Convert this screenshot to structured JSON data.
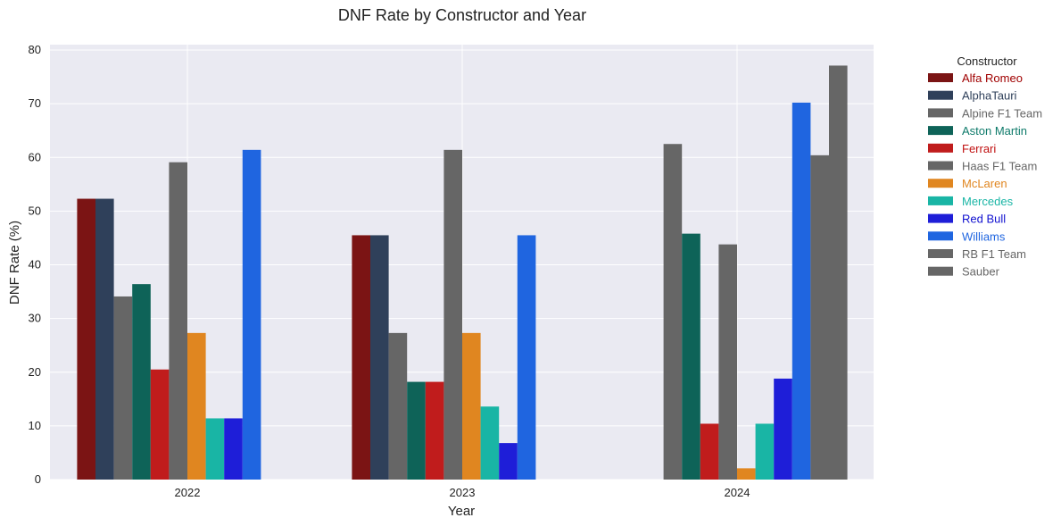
{
  "chart_data": {
    "type": "bar",
    "title": "DNF Rate by Constructor and Year",
    "xlabel": "Year",
    "ylabel": "DNF Rate (%)",
    "categories": [
      "2022",
      "2023",
      "2024"
    ],
    "ylim": [
      0,
      81
    ],
    "yticks": [
      0,
      10,
      20,
      30,
      40,
      50,
      60,
      70,
      80
    ],
    "grid": true,
    "legend_title": "Constructor",
    "legend_position": "outside-right",
    "series": [
      {
        "name": "Alfa Romeo",
        "color": "#7b1414",
        "values": [
          52.3,
          45.5,
          null
        ]
      },
      {
        "name": "AlphaTauri",
        "color": "#2f405a",
        "values": [
          52.3,
          45.5,
          null
        ]
      },
      {
        "name": "Alpine F1 Team",
        "color": "#666666",
        "values": [
          34.1,
          27.3,
          62.5
        ]
      },
      {
        "name": "Aston Martin",
        "color": "#0e6358",
        "values": [
          36.4,
          18.2,
          45.8
        ]
      },
      {
        "name": "Ferrari",
        "color": "#c01c1c",
        "values": [
          20.5,
          18.2,
          10.4
        ]
      },
      {
        "name": "Haas F1 Team",
        "color": "#666666",
        "values": [
          59.1,
          61.4,
          43.8
        ]
      },
      {
        "name": "McLaren",
        "color": "#e08620",
        "values": [
          27.3,
          27.3,
          2.1
        ]
      },
      {
        "name": "Mercedes",
        "color": "#19b5a5",
        "values": [
          11.4,
          13.6,
          10.4
        ]
      },
      {
        "name": "Red Bull",
        "color": "#1e1ed8",
        "values": [
          11.4,
          6.8,
          18.8
        ]
      },
      {
        "name": "Williams",
        "color": "#1f65e0",
        "values": [
          61.4,
          45.5,
          70.2
        ]
      },
      {
        "name": "RB F1 Team",
        "color": "#666666",
        "values": [
          null,
          null,
          60.4
        ]
      },
      {
        "name": "Sauber",
        "color": "#666666",
        "values": [
          null,
          null,
          77.1
        ]
      }
    ]
  },
  "legend_text_colors": [
    "#a00000",
    "#2f405a",
    "#666666",
    "#0e7a6a",
    "#c01010",
    "#666666",
    "#e08620",
    "#19b5a5",
    "#1010d0",
    "#1f65e0",
    "#666666",
    "#666666"
  ]
}
